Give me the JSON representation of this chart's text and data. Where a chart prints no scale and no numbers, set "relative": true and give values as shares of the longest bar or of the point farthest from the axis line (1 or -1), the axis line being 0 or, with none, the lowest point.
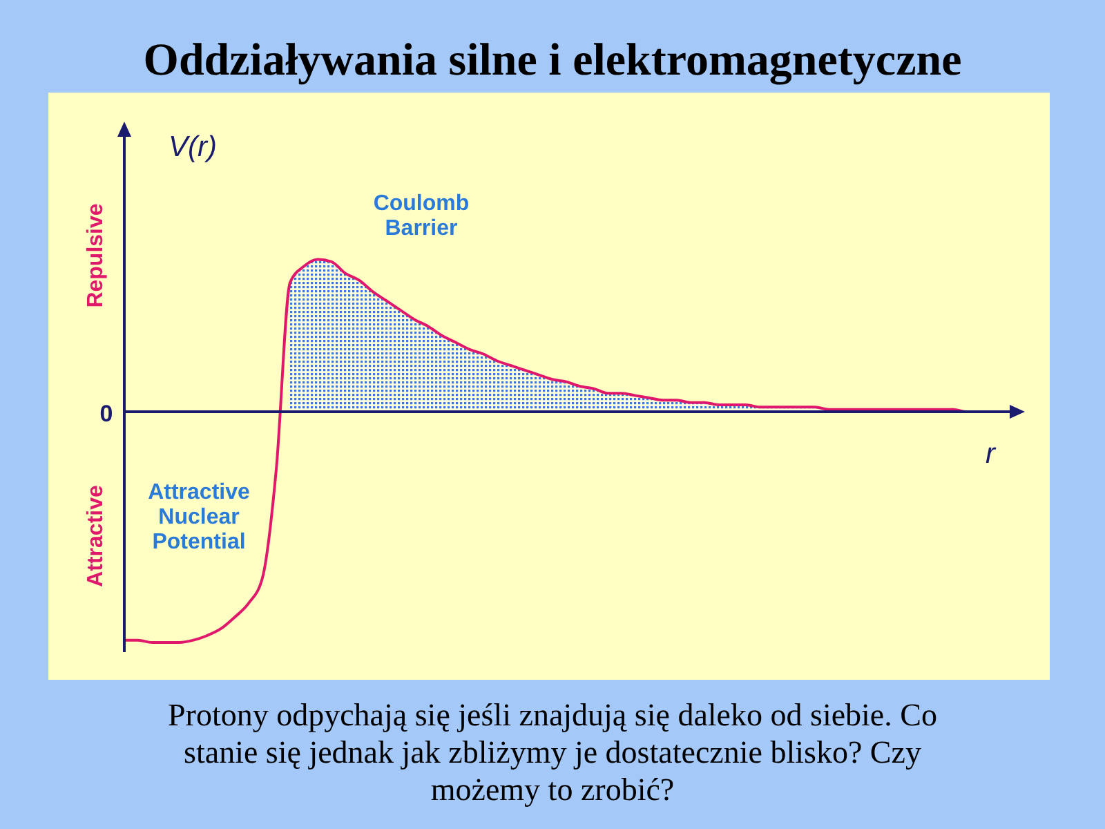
{
  "chart_data": {
    "type": "line",
    "relative": true,
    "title": "Oddziaływania silne i elektromagnetyczne",
    "ylabel": "V(r)",
    "xlabel": "r",
    "categories": [
      null,
      null,
      null,
      null,
      null,
      null,
      null,
      null,
      null,
      null,
      null,
      null,
      null,
      null,
      null,
      null,
      null,
      null,
      null,
      null,
      null,
      null,
      null,
      null,
      null,
      null,
      null,
      null,
      null,
      null,
      null,
      null,
      null,
      null,
      null,
      null,
      null,
      null,
      null,
      null,
      null,
      null,
      null,
      null,
      null,
      null,
      null,
      null,
      null,
      null,
      null,
      null,
      null,
      null,
      null,
      null,
      null,
      null,
      null,
      null,
      null,
      null,
      null,
      null
    ],
    "series": [
      {
        "type": "area",
        "color": "#3a78d8",
        "values": [
          null,
          null,
          null,
          null,
          null,
          null,
          null,
          null,
          null,
          null,
          null,
          null,
          0.56,
          0.63,
          0.66,
          0.65,
          0.6,
          0.57,
          0.52,
          0.48,
          0.44,
          0.4,
          0.37,
          0.33,
          0.3,
          0.27,
          0.25,
          0.22,
          0.2,
          0.18,
          0.16,
          0.14,
          0.13,
          0.11,
          0.1,
          0.08,
          0.08,
          0.07,
          0.06,
          0.05,
          0.05,
          0.04,
          0.04,
          0.03,
          0.03,
          0.03,
          0.02,
          0.02,
          0.02,
          0.02,
          0.02,
          0.01,
          0.01,
          0.01,
          0.01,
          0.01,
          0.01,
          0.01,
          0.01,
          0.01,
          0.01,
          0,
          0,
          0
        ]
      },
      {
        "type": "line",
        "color": "#e0186c",
        "values": [
          -0.99,
          -0.99,
          -1,
          -1,
          -1,
          -0.99,
          -0.97,
          -0.94,
          -0.89,
          -0.83,
          -0.72,
          -0.25,
          0.56,
          0.63,
          0.66,
          0.65,
          0.6,
          0.57,
          0.52,
          0.48,
          0.44,
          0.4,
          0.37,
          0.33,
          0.3,
          0.27,
          0.25,
          0.22,
          0.2,
          0.18,
          0.16,
          0.14,
          0.13,
          0.11,
          0.1,
          0.08,
          0.08,
          0.07,
          0.06,
          0.05,
          0.05,
          0.04,
          0.04,
          0.03,
          0.03,
          0.03,
          0.02,
          0.02,
          0.02,
          0.02,
          0.02,
          0.01,
          0.01,
          0.01,
          0.01,
          0.01,
          0.01,
          0.01,
          0.01,
          0.01,
          0.01,
          0,
          0,
          0
        ]
      }
    ],
    "ref_lines": [
      {
        "axis": "y",
        "value": 0,
        "label": "0",
        "color": "#1a1a6e"
      }
    ],
    "annotations": [
      "Repulsive",
      "Attractive",
      "Coulomb\nBarrier",
      "Attractive\nNuclear\nPotential",
      "Protony odpychają się jeśli znajdują się daleko od siebie. Co\nstanie się jednak jak zbliżymy je dostatecznie blisko? Czy\nmożemy to zrobić?"
    ],
    "line_style": "solid"
  }
}
